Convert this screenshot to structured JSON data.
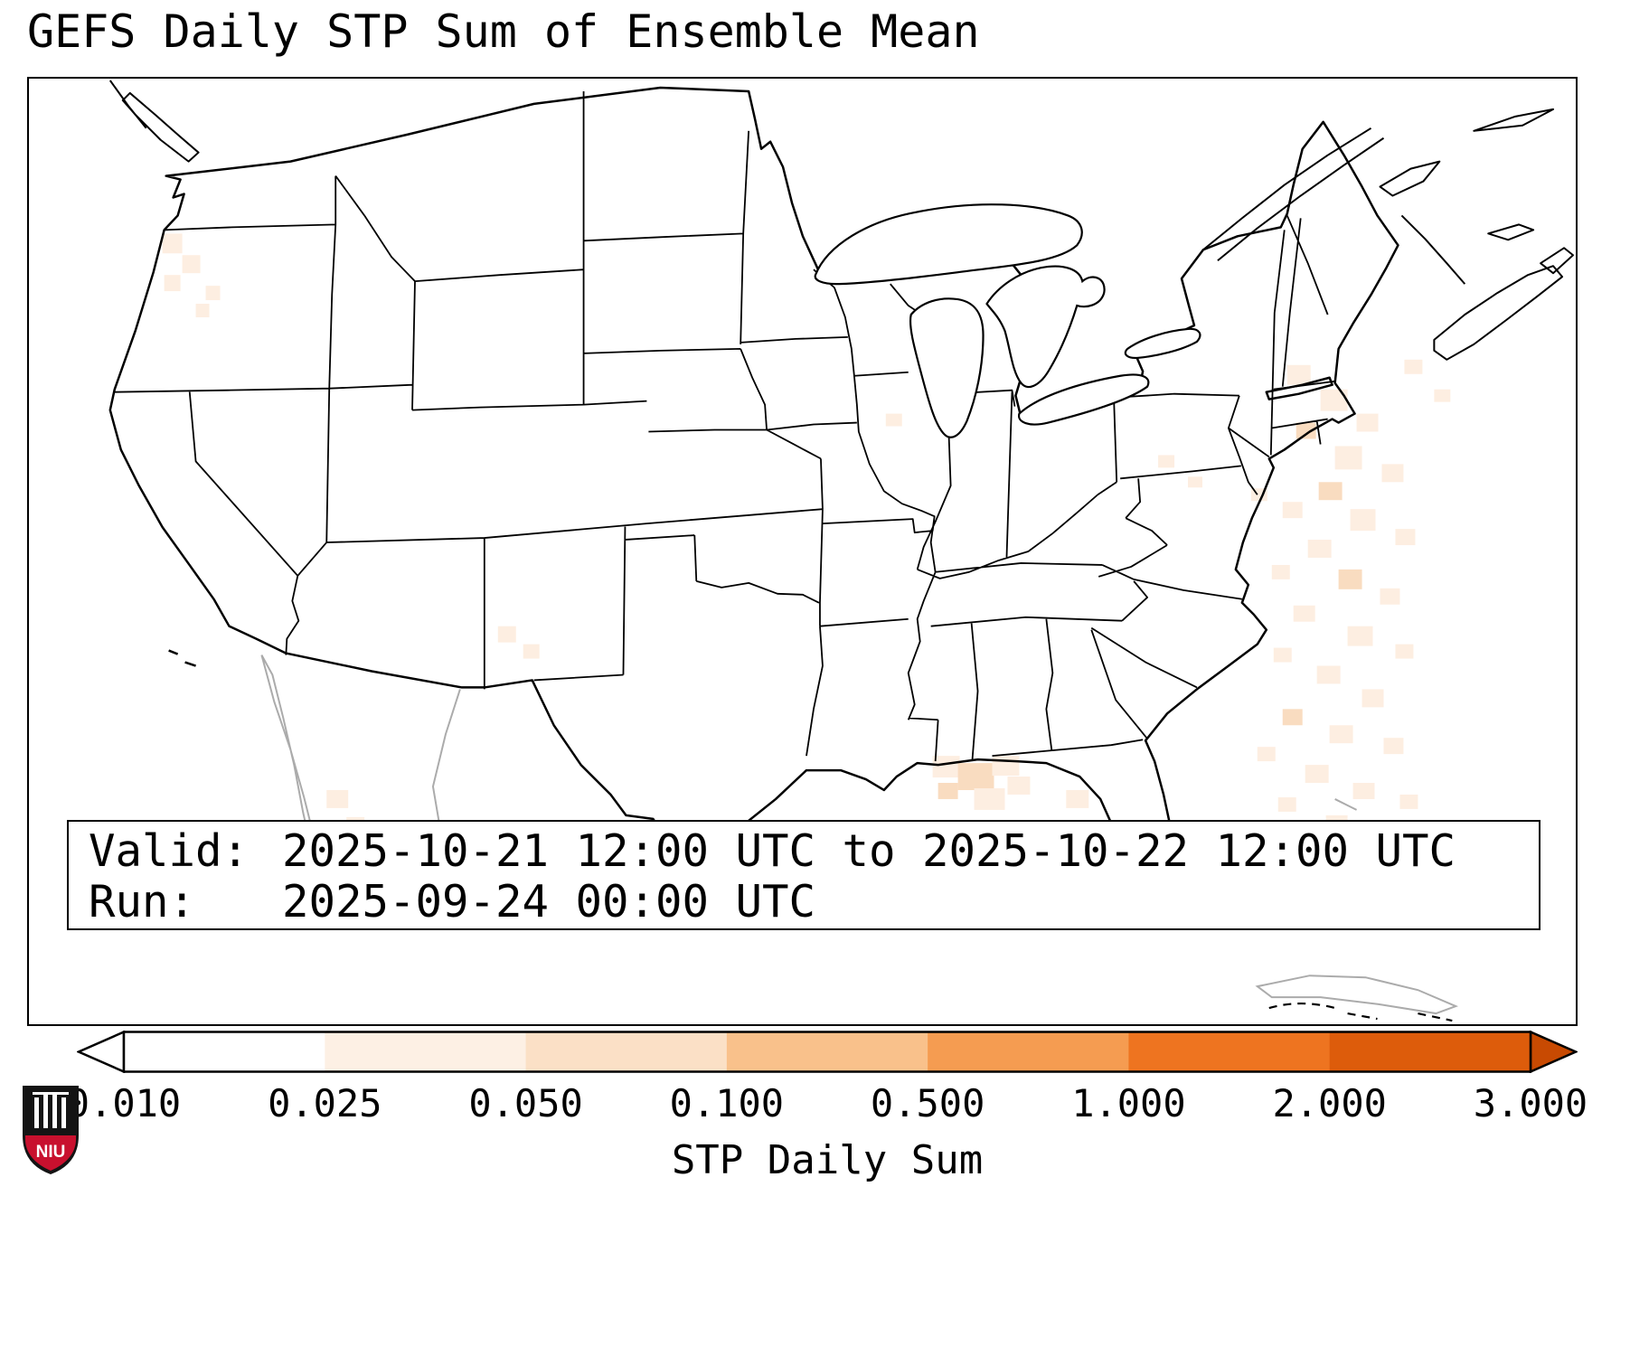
{
  "title": "GEFS Daily STP Sum of Ensemble Mean",
  "info_box": {
    "valid_label": "Valid:",
    "valid_value": "2025-10-21 12:00 UTC to 2025-10-22 12:00 UTC",
    "run_label": "Run:",
    "run_value": "2025-09-24 00:00 UTC"
  },
  "chart_data": {
    "type": "heatmap",
    "title": "GEFS Daily STP Sum of Ensemble Mean",
    "geography": "CONUS with US state borders; Canada, Mexico, Cuba and Bahamas coastlines; Great Lakes",
    "valid": "2025-10-21 12:00 UTC to 2025-10-22 12:00 UTC",
    "run": "2025-09-24 00:00 UTC",
    "colorbar": {
      "label": "STP Daily Sum",
      "orientation": "horizontal",
      "extend": "both",
      "ticks": [
        "0.010",
        "0.025",
        "0.050",
        "0.100",
        "0.500",
        "1.000",
        "2.000",
        "3.000"
      ],
      "boundaries": [
        0.01,
        0.025,
        0.05,
        0.1,
        0.5,
        1.0,
        2.0,
        3.0
      ],
      "segment_colors": [
        "#ffffff",
        "#fdf0e4",
        "#fbe0c6",
        "#f9c18b",
        "#f59c51",
        "#ee7420",
        "#dd5c0b"
      ],
      "under_color": "#ffffff",
      "over_color": "#c84a02"
    },
    "observed_values": [
      {
        "region": "Atlantic offshore of the Southeast coast / Bahamas",
        "value_range": "0.010-0.050"
      },
      {
        "region": "Gulf of Mexico south of Louisiana / Alabama / Florida panhandle",
        "value_range": "0.010-0.050"
      },
      {
        "region": "Western Oregon / Pacific Northwest coast",
        "value_range": "0.010-0.025"
      },
      {
        "region": "Southern New Mexico and far west Texas",
        "value_range": "0.010-0.025"
      },
      {
        "region": "Remainder of CONUS",
        "value_range": "< 0.010"
      }
    ]
  },
  "logo": {
    "text": "NIU",
    "shield_red": "#c8102e",
    "shield_dark": "#141414"
  }
}
